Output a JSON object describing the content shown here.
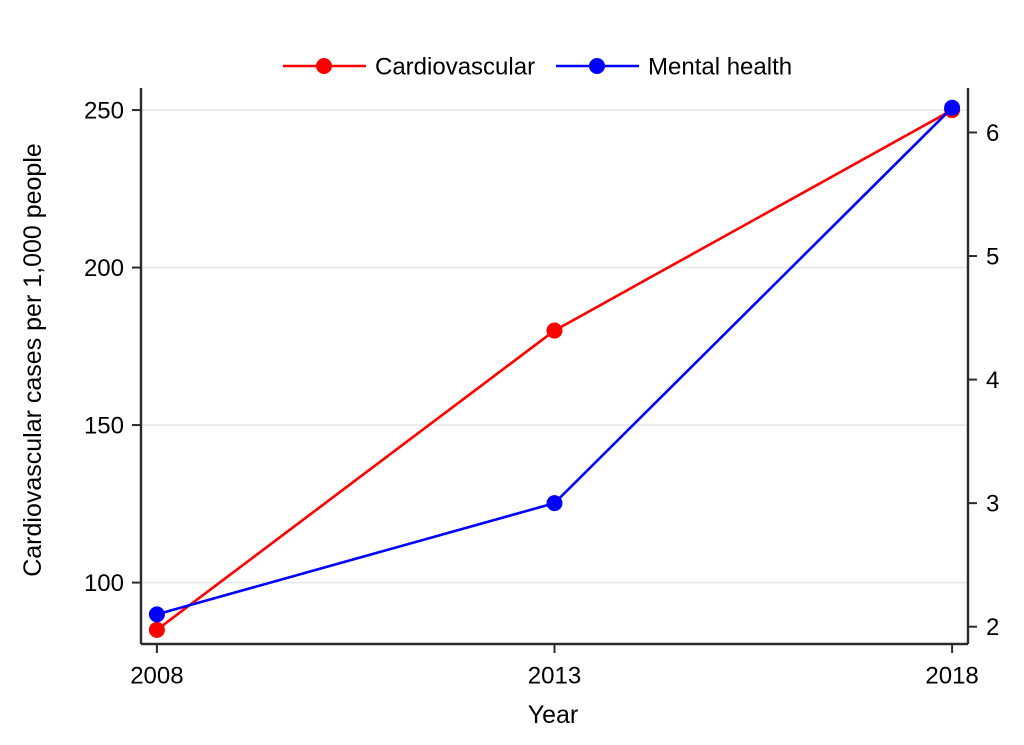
{
  "figure": {
    "background": "#ffffff",
    "text_color": "#000000",
    "axis_color": "#2b2b2b",
    "grid_color": "#e8e8e8"
  },
  "chart_data": {
    "type": "line",
    "title": "",
    "x": [
      2008,
      2013,
      2018
    ],
    "x_axis": {
      "label": "Year",
      "ticks": [
        2008,
        2013,
        2018
      ],
      "tick_labels": [
        "2008",
        "2013",
        "2018"
      ],
      "xlim": [
        2007.8,
        2018.2
      ]
    },
    "left_axis": {
      "label": "Cardiovascular cases per 1,000 people",
      "ticks": [
        100,
        150,
        200,
        250
      ],
      "tick_labels": [
        "100",
        "150",
        "200",
        "250"
      ],
      "ylim": [
        80.5,
        257
      ]
    },
    "right_axis": {
      "label": "",
      "ticks": [
        2,
        3,
        4,
        5,
        6
      ],
      "tick_labels": [
        "2",
        "3",
        "4",
        "5",
        "6"
      ],
      "ylim": [
        1.86,
        6.36
      ]
    },
    "grid": "horizontal gridlines at left-axis ticks only",
    "legend_position": "top-center",
    "series": [
      {
        "name": "Cardiovascular",
        "axis": "left",
        "color": "#ff0000",
        "marker": "circle",
        "values": [
          85,
          180,
          250
        ]
      },
      {
        "name": "Mental health",
        "axis": "right",
        "color": "#0000ff",
        "marker": "circle",
        "values": [
          2.1,
          3.0,
          6.2
        ]
      }
    ]
  }
}
